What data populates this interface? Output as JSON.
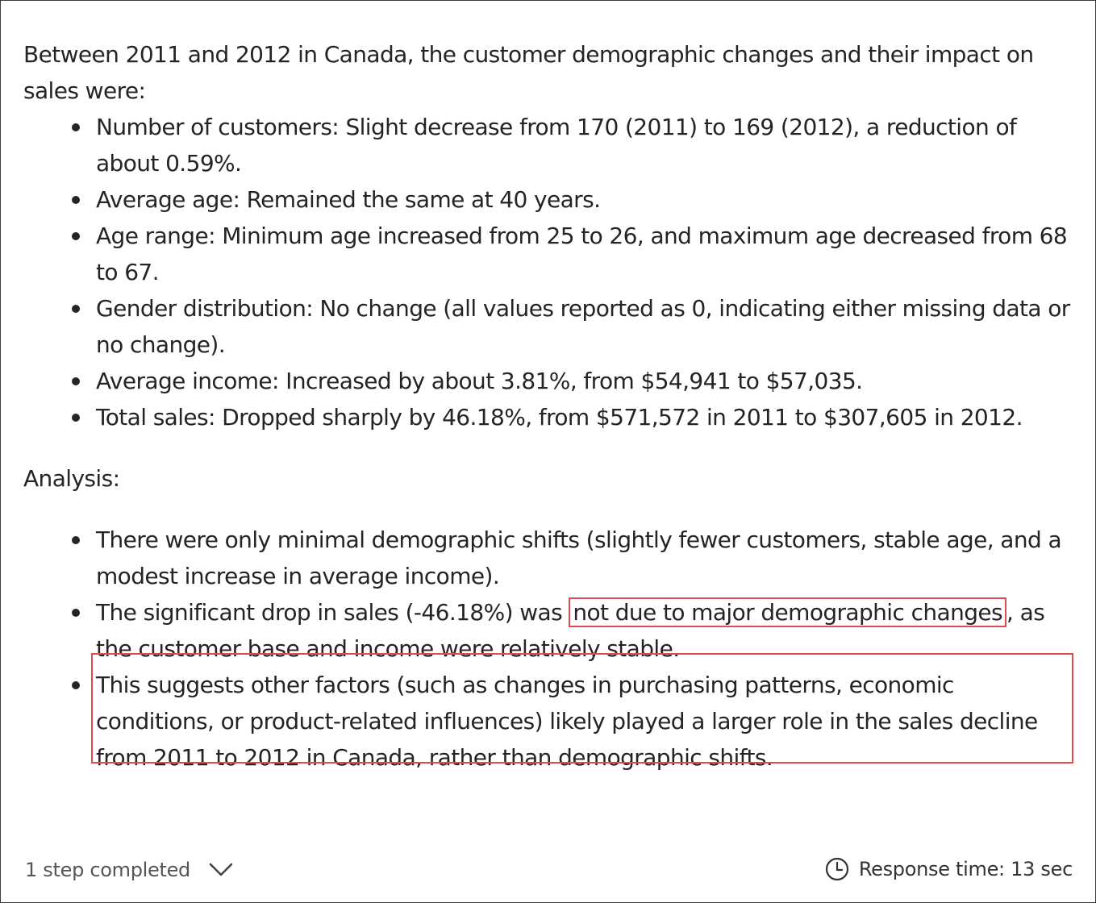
{
  "intro": "Between 2011 and 2012 in Canada, the customer demographic changes and their impact on sales were:",
  "changes": [
    "Number of customers: Slight decrease from 170 (2011) to 169 (2012), a reduction of about 0.59%.",
    "Average age: Remained the same at 40 years.",
    "Age range: Minimum age increased from 25 to 26, and maximum age decreased from 68 to 67.",
    "Gender distribution: No change (all values reported as 0, indicating either missing data or no change).",
    "Average income: Increased by about 3.81%, from $54,941 to $57,035.",
    "Total sales: Dropped sharply by 46.18%, from $571,572 in 2011 to $307,605 in 2012."
  ],
  "analysis_title": "Analysis:",
  "analysis": {
    "item1": "There were only minimal demographic shifts (slightly fewer customers, stable age, and a modest increase in average income).",
    "item2_before": "The significant drop in sales (-46.18%) was ",
    "item2_highlight": "not due to major demographic changes",
    "item2_after": ", as the customer base and income were relatively stable.",
    "item3": "This suggests other factors (such as changes in purchasing patterns, economic conditions, or product-related influences) likely played a larger role in the sales decline from 2011 to 2012 in Canada, rather than demographic shifts."
  },
  "footer": {
    "steps_label": "1 step completed",
    "response_label": "Response time: 13 sec"
  },
  "icons": {
    "expand": "chevron-down-icon",
    "time": "clock-icon"
  },
  "colors": {
    "highlight_border": "#e04a4f"
  }
}
